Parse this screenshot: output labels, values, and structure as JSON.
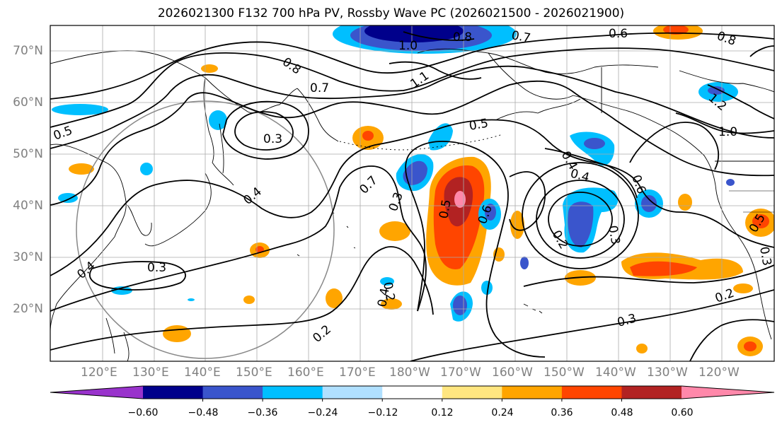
{
  "title": "2026021300 F132 700 hPa PV, Rossby Wave PC (2026021500 - 2026021900)",
  "lat_labels": [
    "70°N",
    "60°N",
    "50°N",
    "40°N",
    "30°N",
    "20°N"
  ],
  "lon_labels": [
    "120°E",
    "130°E",
    "140°E",
    "150°E",
    "160°E",
    "170°E",
    "180°W",
    "170°W",
    "160°W",
    "150°W",
    "140°W",
    "130°W",
    "120°W"
  ],
  "colorbar": {
    "colors": [
      "#9933cc",
      "#00008b",
      "#3a55cc",
      "#00bfff",
      "#b0e0ff",
      "#ffffff",
      "#ffe680",
      "#ffa500",
      "#ff4500",
      "#b22222",
      "#ff88aa"
    ],
    "ticks": [
      "−0.60",
      "−0.48",
      "−0.36",
      "−0.24",
      "−0.12",
      "0.12",
      "0.24",
      "0.36",
      "0.48",
      "0.60"
    ]
  },
  "contour_labels": [
    "0.8",
    "0.7",
    "0.6",
    "0.8",
    "1.0",
    "0.8",
    "0.7",
    "1.1",
    "0.5",
    "0.3",
    "0.4",
    "0.7",
    "0.3",
    "0.5",
    "0.6",
    "0.5",
    "0.4",
    "0.4",
    "0.6",
    "0.2",
    "0.3",
    "1.2",
    "1.0",
    "0.5",
    "0.4",
    "0.3",
    "0.2",
    "0.4",
    "0.2",
    "0.3",
    "0.2",
    "0.3"
  ]
}
